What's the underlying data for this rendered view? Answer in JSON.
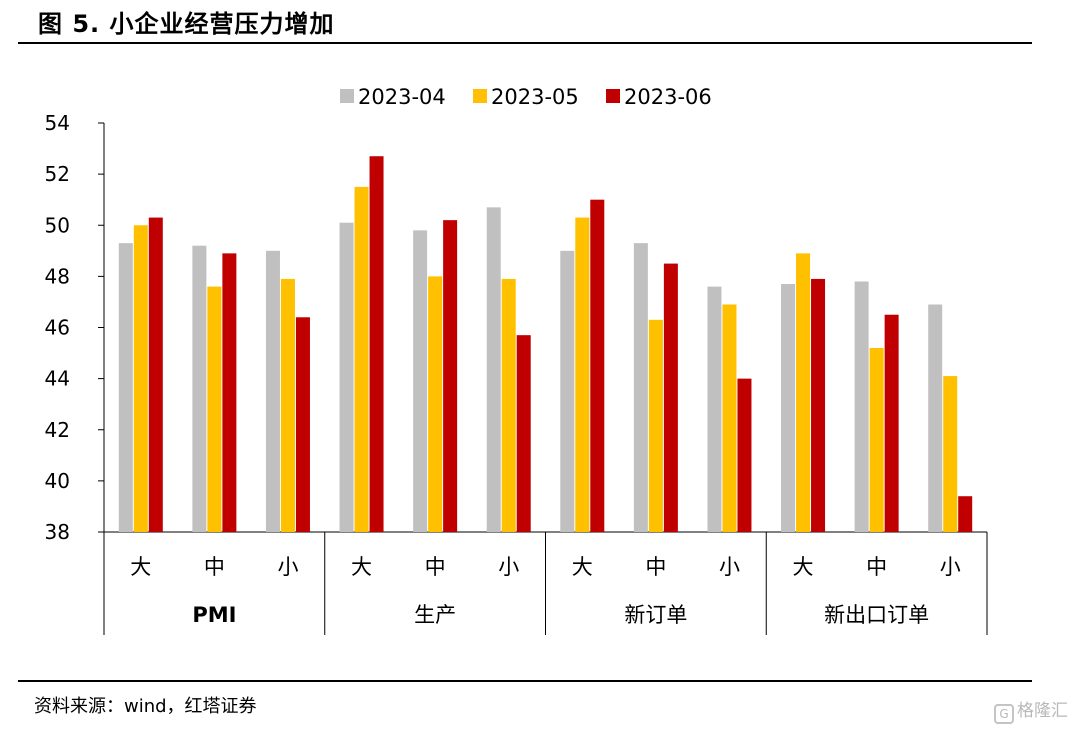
{
  "title": "图 5. 小企业经营压力增加",
  "source": "资料来源：wind，红塔证券",
  "watermark": "格隆汇",
  "chart_data": {
    "type": "bar",
    "title": "",
    "xlabel": "",
    "ylabel": "",
    "ylim": [
      38,
      54
    ],
    "yticks": [
      38,
      40,
      42,
      44,
      46,
      48,
      50,
      52,
      54
    ],
    "grid": false,
    "legend_position": "top",
    "groups": [
      "PMI",
      "生产",
      "新订单",
      "新出口订单"
    ],
    "categories": [
      "大",
      "中",
      "小",
      "大",
      "中",
      "小",
      "大",
      "中",
      "小",
      "大",
      "中",
      "小"
    ],
    "series": [
      {
        "name": "2023-04",
        "color": "#c0c0c0",
        "values": [
          49.3,
          49.2,
          49.0,
          50.1,
          49.8,
          50.7,
          49.0,
          49.3,
          47.6,
          47.7,
          47.8,
          46.9
        ]
      },
      {
        "name": "2023-05",
        "color": "#ffc000",
        "values": [
          50.0,
          47.6,
          47.9,
          51.5,
          48.0,
          47.9,
          50.3,
          46.3,
          46.9,
          48.9,
          45.2,
          44.1
        ]
      },
      {
        "name": "2023-06",
        "color": "#c00000",
        "values": [
          50.3,
          48.9,
          46.4,
          52.7,
          50.2,
          45.7,
          51.0,
          48.5,
          44.0,
          47.9,
          46.5,
          39.4
        ]
      }
    ]
  }
}
